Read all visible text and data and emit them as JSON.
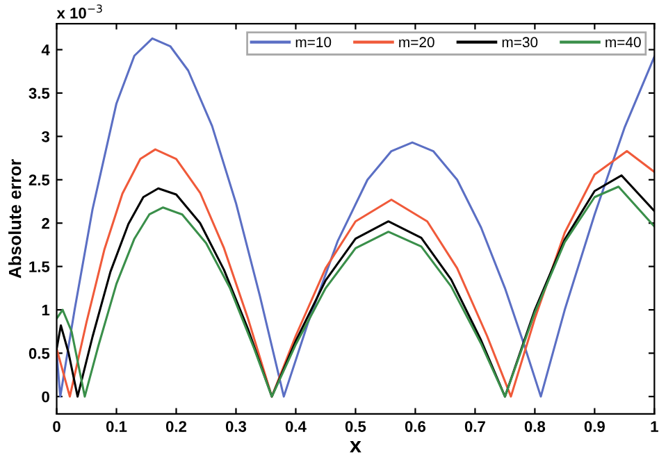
{
  "chart_data": {
    "type": "line",
    "xlabel": "x",
    "ylabel": "Absolute error",
    "annotations": [
      "x 10$^{−3}$"
    ],
    "xlim": [
      0,
      1
    ],
    "ylim": [
      -0.2,
      4.3
    ],
    "xticks": [
      0,
      0.1,
      0.2,
      0.3,
      0.4,
      0.5,
      0.6,
      0.7,
      0.8,
      0.9,
      1
    ],
    "yticks": [
      0,
      0.5,
      1,
      1.5,
      2,
      2.5,
      3,
      3.5,
      4
    ],
    "grid": false,
    "legend": "top right",
    "marker": "none",
    "line_style": "solid",
    "series": [
      {
        "name": "m=10",
        "color": "#5b6fc4",
        "x": [
          0,
          0.006,
          0.03,
          0.06,
          0.1,
          0.13,
          0.16,
          0.19,
          0.22,
          0.26,
          0.3,
          0.34,
          0.38,
          0.42,
          0.47,
          0.52,
          0.56,
          0.595,
          0.63,
          0.67,
          0.71,
          0.75,
          0.78,
          0.81,
          0.85,
          0.9,
          0.95,
          1.0
        ],
        "values": [
          0.5,
          0,
          1.0,
          2.16,
          3.38,
          3.93,
          4.13,
          4.04,
          3.76,
          3.12,
          2.23,
          1.16,
          0,
          0.84,
          1.79,
          2.5,
          2.83,
          2.93,
          2.83,
          2.5,
          1.95,
          1.25,
          0.64,
          0,
          1.0,
          2.1,
          3.1,
          3.92
        ]
      },
      {
        "name": "m=20",
        "color": "#f05a3a",
        "x": [
          0,
          0.022,
          0.05,
          0.08,
          0.11,
          0.14,
          0.165,
          0.2,
          0.24,
          0.28,
          0.32,
          0.36,
          0.4,
          0.45,
          0.5,
          0.56,
          0.62,
          0.67,
          0.72,
          0.76,
          0.8,
          0.85,
          0.9,
          0.954,
          1.0
        ],
        "values": [
          0.55,
          0,
          0.86,
          1.7,
          2.34,
          2.74,
          2.85,
          2.74,
          2.35,
          1.71,
          0.9,
          0,
          0.7,
          1.48,
          2.02,
          2.27,
          2.02,
          1.48,
          0.7,
          0,
          0.9,
          1.89,
          2.56,
          2.83,
          2.59
        ]
      },
      {
        "name": "m=30",
        "color": "#000000",
        "x": [
          0,
          0.007,
          0.02,
          0.035,
          0.06,
          0.09,
          0.12,
          0.145,
          0.17,
          0.2,
          0.24,
          0.28,
          0.32,
          0.36,
          0.4,
          0.45,
          0.5,
          0.555,
          0.61,
          0.66,
          0.71,
          0.75,
          0.8,
          0.85,
          0.9,
          0.945,
          1.0
        ],
        "values": [
          0.55,
          0.82,
          0.5,
          0,
          0.69,
          1.44,
          1.99,
          2.3,
          2.4,
          2.33,
          2.0,
          1.46,
          0.78,
          0,
          0.64,
          1.34,
          1.82,
          2.02,
          1.83,
          1.35,
          0.65,
          0,
          1.0,
          1.81,
          2.37,
          2.55,
          2.14
        ]
      },
      {
        "name": "m=40",
        "color": "#3a8f4a",
        "x": [
          0,
          0.01,
          0.025,
          0.047,
          0.07,
          0.1,
          0.13,
          0.155,
          0.178,
          0.21,
          0.25,
          0.29,
          0.33,
          0.36,
          0.4,
          0.45,
          0.5,
          0.555,
          0.61,
          0.66,
          0.71,
          0.75,
          0.8,
          0.85,
          0.9,
          0.94,
          1.0
        ],
        "values": [
          0.9,
          1.0,
          0.75,
          0,
          0.59,
          1.3,
          1.82,
          2.1,
          2.18,
          2.1,
          1.77,
          1.25,
          0.56,
          0,
          0.6,
          1.25,
          1.71,
          1.9,
          1.73,
          1.27,
          0.61,
          0,
          0.97,
          1.78,
          2.3,
          2.42,
          1.96
        ]
      }
    ]
  }
}
